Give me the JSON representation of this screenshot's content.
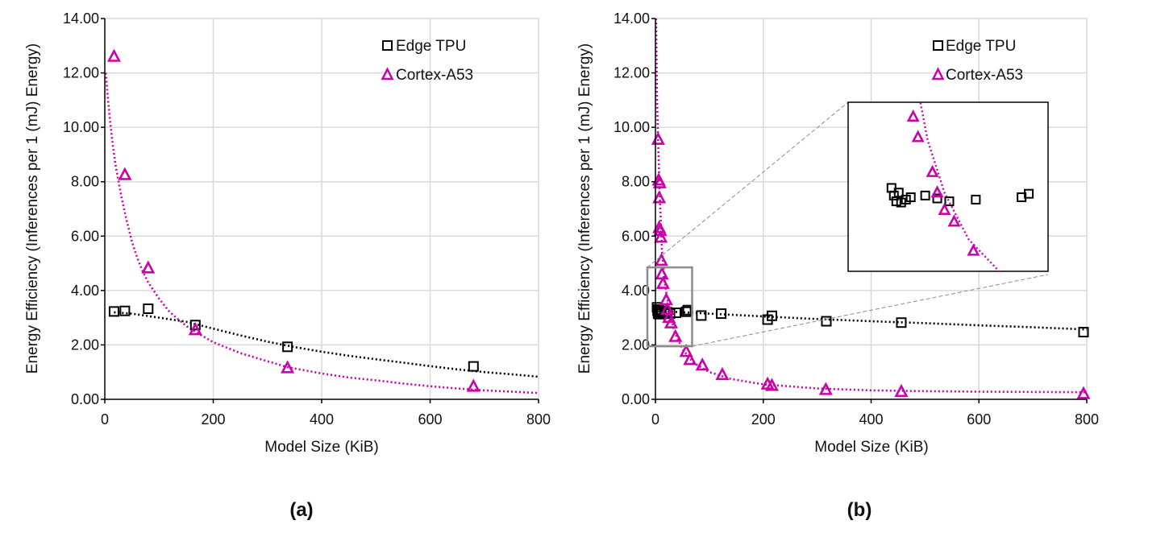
{
  "colors": {
    "edge_tpu": "#000000",
    "cortex_a53": "#cc00aa",
    "grid": "#d9d9d9",
    "axis": "#000000",
    "zoom_box": "#8c8c8c"
  },
  "chart_data": [
    {
      "panel_label": "(a)",
      "type": "scatter",
      "xlabel": "Model Size (KiB)",
      "ylabel": "Energy Efficiency (Inferences per 1 (mJ) Energy)",
      "xlim": [
        0,
        800
      ],
      "ylim": [
        0,
        14
      ],
      "x_ticks": [
        "0",
        "200",
        "400",
        "600",
        "800"
      ],
      "y_ticks": [
        "0.00",
        "2.00",
        "4.00",
        "6.00",
        "8.00",
        "10.00",
        "12.00",
        "14.00"
      ],
      "grid": true,
      "legend_position": "top-right",
      "series": [
        {
          "name": "Edge TPU",
          "marker": "square",
          "points": [
            [
              17,
              3.23
            ],
            [
              37,
              3.25
            ],
            [
              80,
              3.33
            ],
            [
              167,
              2.73
            ],
            [
              337,
              1.93
            ],
            [
              680,
              1.21
            ]
          ],
          "trendline": [
            [
              17,
              3.2
            ],
            [
              50,
              3.15
            ],
            [
              100,
              3.0
            ],
            [
              150,
              2.85
            ],
            [
              200,
              2.6
            ],
            [
              250,
              2.35
            ],
            [
              300,
              2.12
            ],
            [
              350,
              1.92
            ],
            [
              400,
              1.75
            ],
            [
              450,
              1.6
            ],
            [
              500,
              1.47
            ],
            [
              550,
              1.35
            ],
            [
              600,
              1.22
            ],
            [
              650,
              1.1
            ],
            [
              700,
              1.0
            ],
            [
              750,
              0.92
            ],
            [
              800,
              0.83
            ]
          ]
        },
        {
          "name": "Cortex-A53",
          "marker": "triangle",
          "points": [
            [
              17,
              12.6
            ],
            [
              37,
              8.25
            ],
            [
              80,
              4.82
            ],
            [
              167,
              2.55
            ],
            [
              337,
              1.15
            ],
            [
              680,
              0.47
            ]
          ],
          "trendline": [
            [
              2,
              12.0
            ],
            [
              5,
              11.2
            ],
            [
              10,
              10.2
            ],
            [
              15,
              9.3
            ],
            [
              20,
              8.6
            ],
            [
              30,
              7.5
            ],
            [
              40,
              6.6
            ],
            [
              50,
              5.8
            ],
            [
              60,
              5.2
            ],
            [
              70,
              4.7
            ],
            [
              80,
              4.3
            ],
            [
              100,
              3.7
            ],
            [
              120,
              3.2
            ],
            [
              150,
              2.7
            ],
            [
              170,
              2.45
            ],
            [
              200,
              2.1
            ],
            [
              250,
              1.7
            ],
            [
              300,
              1.4
            ],
            [
              337,
              1.18
            ],
            [
              400,
              0.95
            ],
            [
              450,
              0.8
            ],
            [
              500,
              0.7
            ],
            [
              550,
              0.58
            ],
            [
              600,
              0.48
            ],
            [
              650,
              0.4
            ],
            [
              700,
              0.33
            ],
            [
              750,
              0.28
            ],
            [
              800,
              0.23
            ]
          ]
        }
      ]
    },
    {
      "panel_label": "(b)",
      "type": "scatter",
      "xlabel": "Model Size (KiB)",
      "ylabel": "Energy Efficiency (Inferences per 1 (mJ) Energy)",
      "xlim": [
        0,
        800
      ],
      "ylim": [
        0,
        14
      ],
      "x_ticks": [
        "0",
        "200",
        "400",
        "600",
        "800"
      ],
      "y_ticks": [
        "0.00",
        "2.00",
        "4.00",
        "6.00",
        "8.00",
        "10.00",
        "12.00",
        "14.00"
      ],
      "grid": true,
      "legend_position": "top-right",
      "zoom_region": {
        "x": [
          -15,
          68
        ],
        "y": [
          1.95,
          4.85
        ]
      },
      "inset_position": "upper-center",
      "series": [
        {
          "name": "Edge TPU",
          "marker": "square",
          "points": [
            [
              3,
              3.38
            ],
            [
              4,
              3.25
            ],
            [
              5,
              3.15
            ],
            [
              6,
              3.3
            ],
            [
              7,
              3.13
            ],
            [
              9,
              3.18
            ],
            [
              11,
              3.22
            ],
            [
              17,
              3.25
            ],
            [
              22,
              3.2
            ],
            [
              27,
              3.15
            ],
            [
              38,
              3.18
            ],
            [
              57,
              3.22
            ],
            [
              60,
              3.28
            ],
            [
              85,
              3.08
            ],
            [
              122,
              3.15
            ],
            [
              208,
              2.93
            ],
            [
              216,
              3.07
            ],
            [
              317,
              2.87
            ],
            [
              456,
              2.82
            ],
            [
              794,
              2.47
            ]
          ],
          "trendline": [
            [
              0,
              3.25
            ],
            [
              100,
              3.15
            ],
            [
              200,
              3.05
            ],
            [
              300,
              2.95
            ],
            [
              400,
              2.87
            ],
            [
              500,
              2.8
            ],
            [
              600,
              2.72
            ],
            [
              700,
              2.65
            ],
            [
              800,
              2.57
            ]
          ]
        },
        {
          "name": "Cortex-A53",
          "marker": "triangle",
          "points": [
            [
              5,
              9.55
            ],
            [
              6,
              8.05
            ],
            [
              8,
              7.95
            ],
            [
              7,
              7.4
            ],
            [
              7,
              6.3
            ],
            [
              9,
              6.2
            ],
            [
              10,
              5.95
            ],
            [
              11,
              5.1
            ],
            [
              12,
              4.6
            ],
            [
              14,
              4.25
            ],
            [
              20,
              3.65
            ],
            [
              22,
              3.3
            ],
            [
              25,
              3.0
            ],
            [
              29,
              2.8
            ],
            [
              37,
              2.3
            ],
            [
              57,
              1.75
            ],
            [
              64,
              1.45
            ],
            [
              87,
              1.25
            ],
            [
              124,
              0.9
            ],
            [
              208,
              0.55
            ],
            [
              216,
              0.5
            ],
            [
              316,
              0.35
            ],
            [
              456,
              0.28
            ],
            [
              794,
              0.2
            ]
          ],
          "trendline": [
            [
              1,
              14.0
            ],
            [
              3,
              11.0
            ],
            [
              5,
              9.5
            ],
            [
              8,
              7.5
            ],
            [
              12,
              5.5
            ],
            [
              18,
              4.2
            ],
            [
              25,
              3.3
            ],
            [
              35,
              2.5
            ],
            [
              50,
              1.85
            ],
            [
              70,
              1.35
            ],
            [
              100,
              1.0
            ],
            [
              140,
              0.75
            ],
            [
              200,
              0.55
            ],
            [
              300,
              0.4
            ],
            [
              400,
              0.33
            ],
            [
              500,
              0.3
            ],
            [
              600,
              0.28
            ],
            [
              700,
              0.27
            ],
            [
              800,
              0.26
            ]
          ]
        }
      ]
    }
  ]
}
